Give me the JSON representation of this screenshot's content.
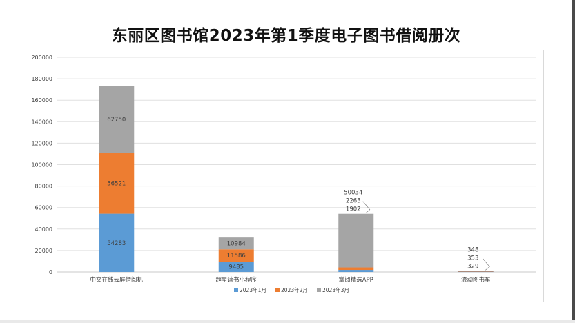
{
  "title": "东丽区图书馆2023年第1季度电子图书借阅册次",
  "colors": {
    "series": [
      "#5b9bd5",
      "#ed7d31",
      "#a5a5a5"
    ],
    "grid": "#e0e0e0",
    "axis_text": "#404040",
    "data_label": "#404040"
  },
  "chart_data": {
    "type": "bar",
    "stacked": true,
    "title": "东丽区图书馆2023年第1季度电子图书借阅册次",
    "categories": [
      "中文在线云屏借阅机",
      "超星读书小程序",
      "掌阅精选APP",
      "流动图书车"
    ],
    "series": [
      {
        "name": "2023年1月",
        "values": [
          54283,
          9485,
          1902,
          329
        ]
      },
      {
        "name": "2023年2月",
        "values": [
          56521,
          11586,
          2263,
          353
        ]
      },
      {
        "name": "2023年3月",
        "values": [
          62750,
          10984,
          50034,
          348
        ]
      }
    ],
    "ylim": [
      0,
      200000
    ],
    "yticks": [
      0,
      20000,
      40000,
      60000,
      80000,
      100000,
      120000,
      140000,
      160000,
      180000,
      200000
    ],
    "ytick_labels": [
      "0",
      "20000",
      "40000",
      "60000",
      "80000",
      "100000",
      "120000",
      "140000",
      "160000",
      "180000",
      "200000"
    ],
    "xlabel": "",
    "ylabel": "",
    "grid": true,
    "legend_position": "bottom"
  }
}
